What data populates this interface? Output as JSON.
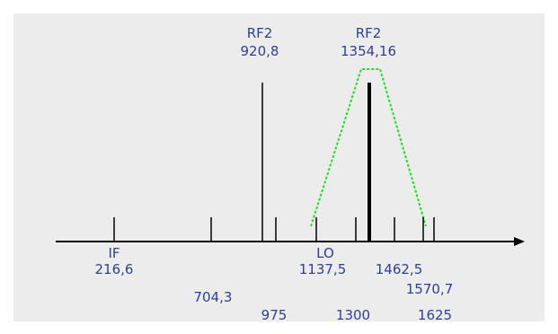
{
  "colors": {
    "label_text": "#2f3f8f",
    "filter_mask": "#22dd22",
    "background": "#ececec"
  },
  "labels": {
    "rf2_left": {
      "name": "RF2",
      "value": "920,8"
    },
    "rf2_right": {
      "name": "RF2",
      "value": "1354,16"
    },
    "if": {
      "name": "IF",
      "value": "216,6"
    },
    "lo": {
      "name": "LO",
      "value": "1137,5"
    },
    "f_704": "704,3",
    "f_975": "975",
    "f_1300": "1300",
    "f_1462": "1462,5",
    "f_1570": "1570,7",
    "f_1625": "1625"
  }
}
